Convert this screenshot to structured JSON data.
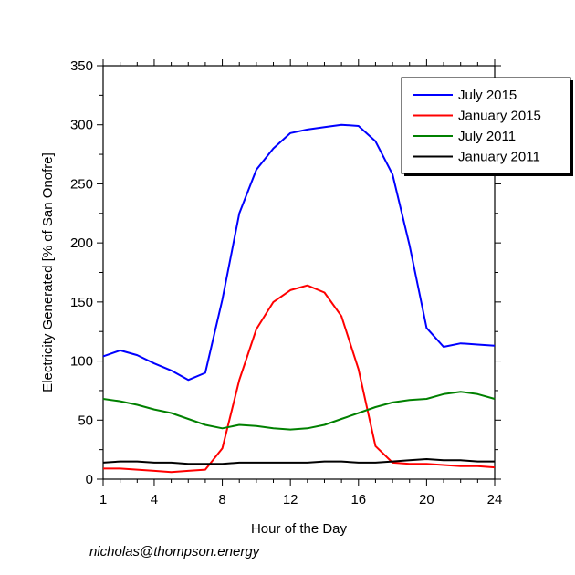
{
  "chart_data": {
    "type": "line",
    "title": "",
    "xlabel": "Hour of the Day",
    "ylabel": "Electricity Generated [% of San Onofre]",
    "xlim": [
      1,
      24
    ],
    "ylim": [
      0,
      350
    ],
    "xticks": [
      1,
      4,
      8,
      12,
      16,
      20,
      24
    ],
    "yticks": [
      0,
      50,
      100,
      150,
      200,
      250,
      300,
      350
    ],
    "grid": false,
    "legend_position": "top-right",
    "x": [
      1,
      2,
      3,
      4,
      5,
      6,
      7,
      8,
      9,
      10,
      11,
      12,
      13,
      14,
      15,
      16,
      17,
      18,
      19,
      20,
      21,
      22,
      23,
      24
    ],
    "series": [
      {
        "name": "July 2015",
        "color": "#0000ff",
        "values": [
          104,
          109,
          105,
          98,
          92,
          84,
          90,
          152,
          225,
          262,
          280,
          293,
          296,
          298,
          300,
          299,
          286,
          258,
          198,
          128,
          112,
          115,
          114,
          113
        ]
      },
      {
        "name": "January 2015",
        "color": "#ff0000",
        "values": [
          9,
          9,
          8,
          7,
          6,
          7,
          8,
          26,
          84,
          127,
          150,
          160,
          164,
          158,
          138,
          93,
          28,
          14,
          13,
          13,
          12,
          11,
          11,
          10
        ]
      },
      {
        "name": "July 2011",
        "color": "#008000",
        "values": [
          68,
          66,
          63,
          59,
          56,
          51,
          46,
          43,
          46,
          45,
          43,
          42,
          43,
          46,
          51,
          56,
          61,
          65,
          67,
          68,
          72,
          74,
          72,
          68
        ]
      },
      {
        "name": "January 2011",
        "color": "#000000",
        "values": [
          14,
          15,
          15,
          14,
          14,
          13,
          13,
          13,
          14,
          14,
          14,
          14,
          14,
          15,
          15,
          14,
          14,
          15,
          16,
          17,
          16,
          16,
          15,
          15
        ]
      }
    ]
  },
  "credit": "nicholas@thompson.energy"
}
